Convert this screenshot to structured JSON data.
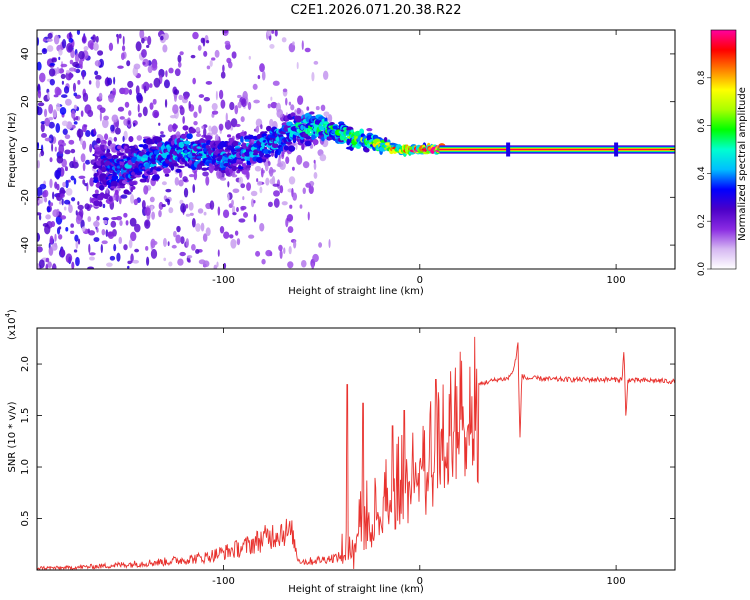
{
  "title": "C2E1.2026.071.20.38.R22",
  "chart_data": [
    {
      "type": "heatmap",
      "xlabel": "Height of straight line (km)",
      "ylabel": "Frequency (Hz)",
      "xlim": [
        -195,
        130
      ],
      "ylim": [
        -50,
        50
      ],
      "xticks": [
        {
          "v": -100,
          "label": "-100"
        },
        {
          "v": 0,
          "label": "0"
        },
        {
          "v": 100,
          "label": "100"
        }
      ],
      "yticks": [
        {
          "v": -40,
          "label": "-40"
        },
        {
          "v": -20,
          "label": "-20"
        },
        {
          "v": 0,
          "label": "0"
        },
        {
          "v": 20,
          "label": "20"
        },
        {
          "v": 40,
          "label": "40"
        }
      ],
      "colorbar": {
        "label": "Normalized spectral amplitude",
        "range": [
          0,
          1
        ],
        "ticks": [
          {
            "v": 0.0,
            "label": "0.0"
          },
          {
            "v": 0.2,
            "label": "0.2"
          },
          {
            "v": 0.4,
            "label": "0.4"
          },
          {
            "v": 0.6,
            "label": "0.6"
          },
          {
            "v": 0.8,
            "label": "0.8"
          }
        ],
        "colormap": [
          "#ffffff",
          "#d6b8f2",
          "#8a2be2",
          "#4b00c8",
          "#0000ff",
          "#00bfff",
          "#00ffd0",
          "#00ff00",
          "#aaff00",
          "#ffff00",
          "#ff8000",
          "#ff0000",
          "#ff00a0"
        ]
      },
      "ridge": [
        {
          "x": -195,
          "f": 0,
          "spread": 45,
          "amp": 0.12
        },
        {
          "x": -170,
          "f": -8,
          "spread": 30,
          "amp": 0.18
        },
        {
          "x": -160,
          "f": -10,
          "spread": 12,
          "amp": 0.3
        },
        {
          "x": -140,
          "f": -4,
          "spread": 10,
          "amp": 0.35
        },
        {
          "x": -120,
          "f": 0,
          "spread": 8,
          "amp": 0.38
        },
        {
          "x": -100,
          "f": -3,
          "spread": 8,
          "amp": 0.35
        },
        {
          "x": -80,
          "f": 1,
          "spread": 7,
          "amp": 0.35
        },
        {
          "x": -65,
          "f": 8,
          "spread": 7,
          "amp": 0.4
        },
        {
          "x": -50,
          "f": 10,
          "spread": 6,
          "amp": 0.45
        },
        {
          "x": -35,
          "f": 5,
          "spread": 5,
          "amp": 0.5
        },
        {
          "x": -20,
          "f": 2,
          "spread": 3,
          "amp": 0.6
        },
        {
          "x": -10,
          "f": 0,
          "spread": 2,
          "amp": 0.7
        },
        {
          "x": 0,
          "f": 0,
          "spread": 1.5,
          "amp": 0.8
        },
        {
          "x": 10,
          "f": 0,
          "spread": 1.5,
          "amp": 1.0
        },
        {
          "x": 130,
          "f": 0,
          "spread": 1.5,
          "amp": 1.0
        }
      ]
    },
    {
      "type": "line",
      "xlabel": "Height of straight line (km)",
      "ylabel": "SNR (10 * v/v)",
      "y_scale_label": "(x10",
      "y_scale_exponent": "4",
      "xlim": [
        -195,
        130
      ],
      "ylim": [
        0,
        2.35
      ],
      "xticks": [
        {
          "v": -100,
          "label": "-100"
        },
        {
          "v": 0,
          "label": "0"
        },
        {
          "v": 100,
          "label": "100"
        }
      ],
      "yticks": [
        {
          "v": 0.5,
          "label": "0.5"
        },
        {
          "v": 1.0,
          "label": "1.0"
        },
        {
          "v": 1.5,
          "label": "1.5"
        },
        {
          "v": 2.0,
          "label": "2.0"
        }
      ],
      "series": [
        {
          "name": "SNR",
          "color": "#e8322e",
          "x": [
            -195,
            -180,
            -160,
            -145,
            -130,
            -120,
            -110,
            -100,
            -90,
            -80,
            -70,
            -65,
            -62,
            -58,
            -50,
            -40,
            -34,
            -32,
            -30,
            -25,
            -20,
            -15,
            -10,
            -5,
            0,
            5,
            10,
            15,
            20,
            25,
            30,
            35,
            40,
            45,
            48,
            50,
            51,
            52,
            54,
            56,
            60,
            70,
            80,
            90,
            100,
            103,
            104,
            105,
            106,
            110,
            120,
            130
          ],
          "y": [
            0.02,
            0.02,
            0.04,
            0.06,
            0.08,
            0.1,
            0.12,
            0.17,
            0.22,
            0.3,
            0.38,
            0.35,
            0.1,
            0.08,
            0.1,
            0.13,
            0.2,
            0.4,
            0.5,
            0.55,
            0.7,
            0.8,
            0.9,
            1.0,
            1.1,
            1.2,
            1.3,
            1.5,
            1.65,
            1.75,
            1.8,
            1.83,
            1.85,
            1.86,
            1.95,
            2.2,
            1.25,
            1.9,
            1.86,
            1.86,
            1.86,
            1.85,
            1.85,
            1.85,
            1.85,
            1.85,
            2.15,
            1.45,
            1.85,
            1.84,
            1.84,
            1.83
          ]
        }
      ],
      "spikes": [
        {
          "x": -37,
          "y": 1.8
        },
        {
          "x": -29,
          "y": 1.62
        },
        {
          "x": -14,
          "y": 1.4
        },
        {
          "x": -8,
          "y": 1.55
        },
        {
          "x": 8,
          "y": 1.85
        }
      ]
    }
  ]
}
